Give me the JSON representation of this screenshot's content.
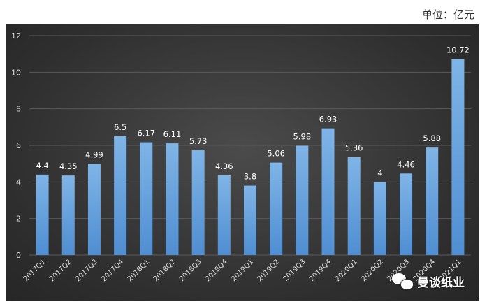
{
  "unit_label": "单位：亿元",
  "watermark": {
    "text": "曼谈纸业",
    "icon": "wechat-icon"
  },
  "colors": {
    "bar_top": "#7fb4e6",
    "bar_bottom": "#4f8ed2",
    "text": "#ffffff",
    "axis_text": "#d9d9d9",
    "grid": "#5a5a5a"
  },
  "chart_data": {
    "type": "bar",
    "title": "",
    "xlabel": "",
    "ylabel": "",
    "ylim": [
      0,
      12
    ],
    "yticks": [
      0,
      2,
      4,
      6,
      8,
      10,
      12
    ],
    "grid": true,
    "categories": [
      "2017Q1",
      "2017Q2",
      "2017Q3",
      "2017Q4",
      "2018Q1",
      "2018Q2",
      "2018Q3",
      "2018Q4",
      "2019Q1",
      "2019Q2",
      "2019Q3",
      "2019Q4",
      "2020Q1",
      "2020Q2",
      "2020Q3",
      "2020Q4",
      "2021Q1"
    ],
    "values": [
      4.4,
      4.35,
      4.99,
      6.5,
      6.17,
      6.11,
      5.73,
      4.36,
      3.8,
      5.06,
      5.98,
      6.93,
      5.36,
      4,
      4.46,
      5.88,
      10.72
    ],
    "value_labels": [
      "4.4",
      "4.35",
      "4.99",
      "6.5",
      "6.17",
      "6.11",
      "5.73",
      "4.36",
      "3.8",
      "5.06",
      "5.98",
      "6.93",
      "5.36",
      "4",
      "4.46",
      "5.88",
      "10.72"
    ]
  }
}
